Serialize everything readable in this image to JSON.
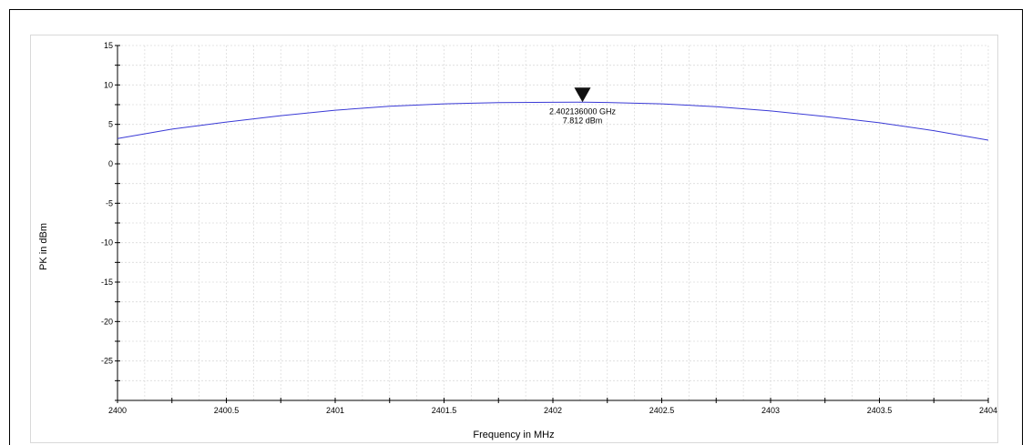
{
  "chart_data": {
    "type": "line",
    "title": "",
    "xlabel": "Frequency in MHz",
    "ylabel": "PK in dBm",
    "xlim": [
      2400,
      2404
    ],
    "ylim": [
      -30,
      15
    ],
    "x_ticks": [
      2400,
      2400.5,
      2401,
      2401.5,
      2402,
      2402.5,
      2403,
      2403.5,
      2404
    ],
    "x_tick_labels": [
      "2400",
      "2400.5",
      "2401",
      "2401.5",
      "2402",
      "2402.5",
      "2403",
      "2403.5",
      "2404"
    ],
    "y_ticks": [
      15,
      10,
      5,
      0,
      -5,
      -10,
      -15,
      -20,
      -25
    ],
    "y_tick_labels": [
      "15",
      "10",
      "5",
      "0",
      "-5",
      "-10",
      "-15",
      "-20",
      "-25"
    ],
    "grid": true,
    "series": [
      {
        "color": "#3a3ad6",
        "x": [
          2400,
          2400.25,
          2400.5,
          2400.75,
          2401,
          2401.25,
          2401.5,
          2401.75,
          2402,
          2402.136,
          2402.25,
          2402.5,
          2402.75,
          2403,
          2403.25,
          2403.5,
          2403.75,
          2404
        ],
        "y": [
          3.2,
          4.4,
          5.3,
          6.1,
          6.8,
          7.3,
          7.6,
          7.75,
          7.8,
          7.812,
          7.78,
          7.6,
          7.25,
          6.7,
          6.0,
          5.2,
          4.2,
          3.0
        ]
      }
    ],
    "marker": {
      "x": 2402.136,
      "y": 7.812,
      "label_freq": "2.402136000 GHz",
      "label_level": "7.812 dBm"
    }
  }
}
